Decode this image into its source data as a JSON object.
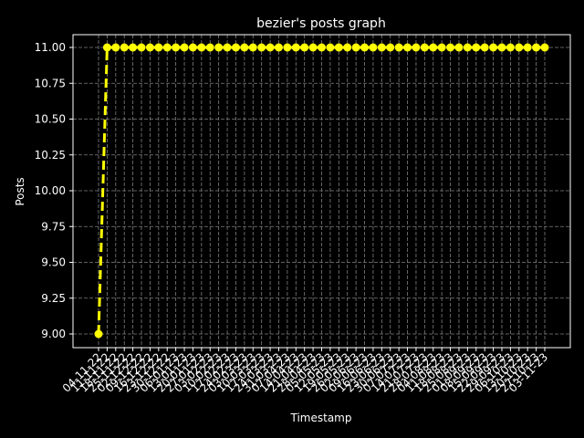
{
  "chart_data": {
    "type": "line",
    "title": "bezier's posts graph",
    "xlabel": "Timestamp",
    "ylabel": "Posts",
    "ylim": [
      9.0,
      11.0
    ],
    "y_ticks": [
      "9.00",
      "9.25",
      "9.50",
      "9.75",
      "10.00",
      "10.25",
      "10.50",
      "10.75",
      "11.00"
    ],
    "x_ticks": [
      "04-11-22",
      "11-11-22",
      "18-11-22",
      "25-11-22",
      "02-12-22",
      "09-12-22",
      "16-12-22",
      "23-12-22",
      "30-12-22",
      "06-01-23",
      "13-01-23",
      "20-01-23",
      "27-01-23",
      "03-02-23",
      "10-02-23",
      "17-02-23",
      "24-02-23",
      "03-03-23",
      "10-03-23",
      "17-03-23",
      "24-03-23",
      "31-03-23",
      "07-04-23",
      "14-04-23",
      "21-04-23",
      "28-04-23",
      "05-05-23",
      "12-05-23",
      "19-05-23",
      "26-05-23",
      "02-06-23",
      "09-06-23",
      "16-06-23",
      "23-06-23",
      "30-06-23",
      "07-07-23",
      "14-07-23",
      "21-07-23",
      "28-07-23",
      "04-08-23",
      "11-08-23",
      "18-08-23",
      "25-08-23",
      "01-09-23",
      "08-09-23",
      "15-09-23",
      "22-09-23",
      "29-09-23",
      "06-10-23",
      "13-10-23",
      "20-10-23",
      "27-10-23",
      "03-11-23"
    ],
    "values": [
      9,
      11,
      11,
      11,
      11,
      11,
      11,
      11,
      11,
      11,
      11,
      11,
      11,
      11,
      11,
      11,
      11,
      11,
      11,
      11,
      11,
      11,
      11,
      11,
      11,
      11,
      11,
      11,
      11,
      11,
      11,
      11,
      11,
      11,
      11,
      11,
      11,
      11,
      11,
      11,
      11,
      11,
      11,
      11,
      11,
      11,
      11,
      11,
      11,
      11,
      11,
      11,
      11
    ],
    "grid": true,
    "line_color": "#ffff00",
    "line_style": "dashed",
    "marker": "circle",
    "background": "#000000",
    "grid_color": "#808080"
  }
}
